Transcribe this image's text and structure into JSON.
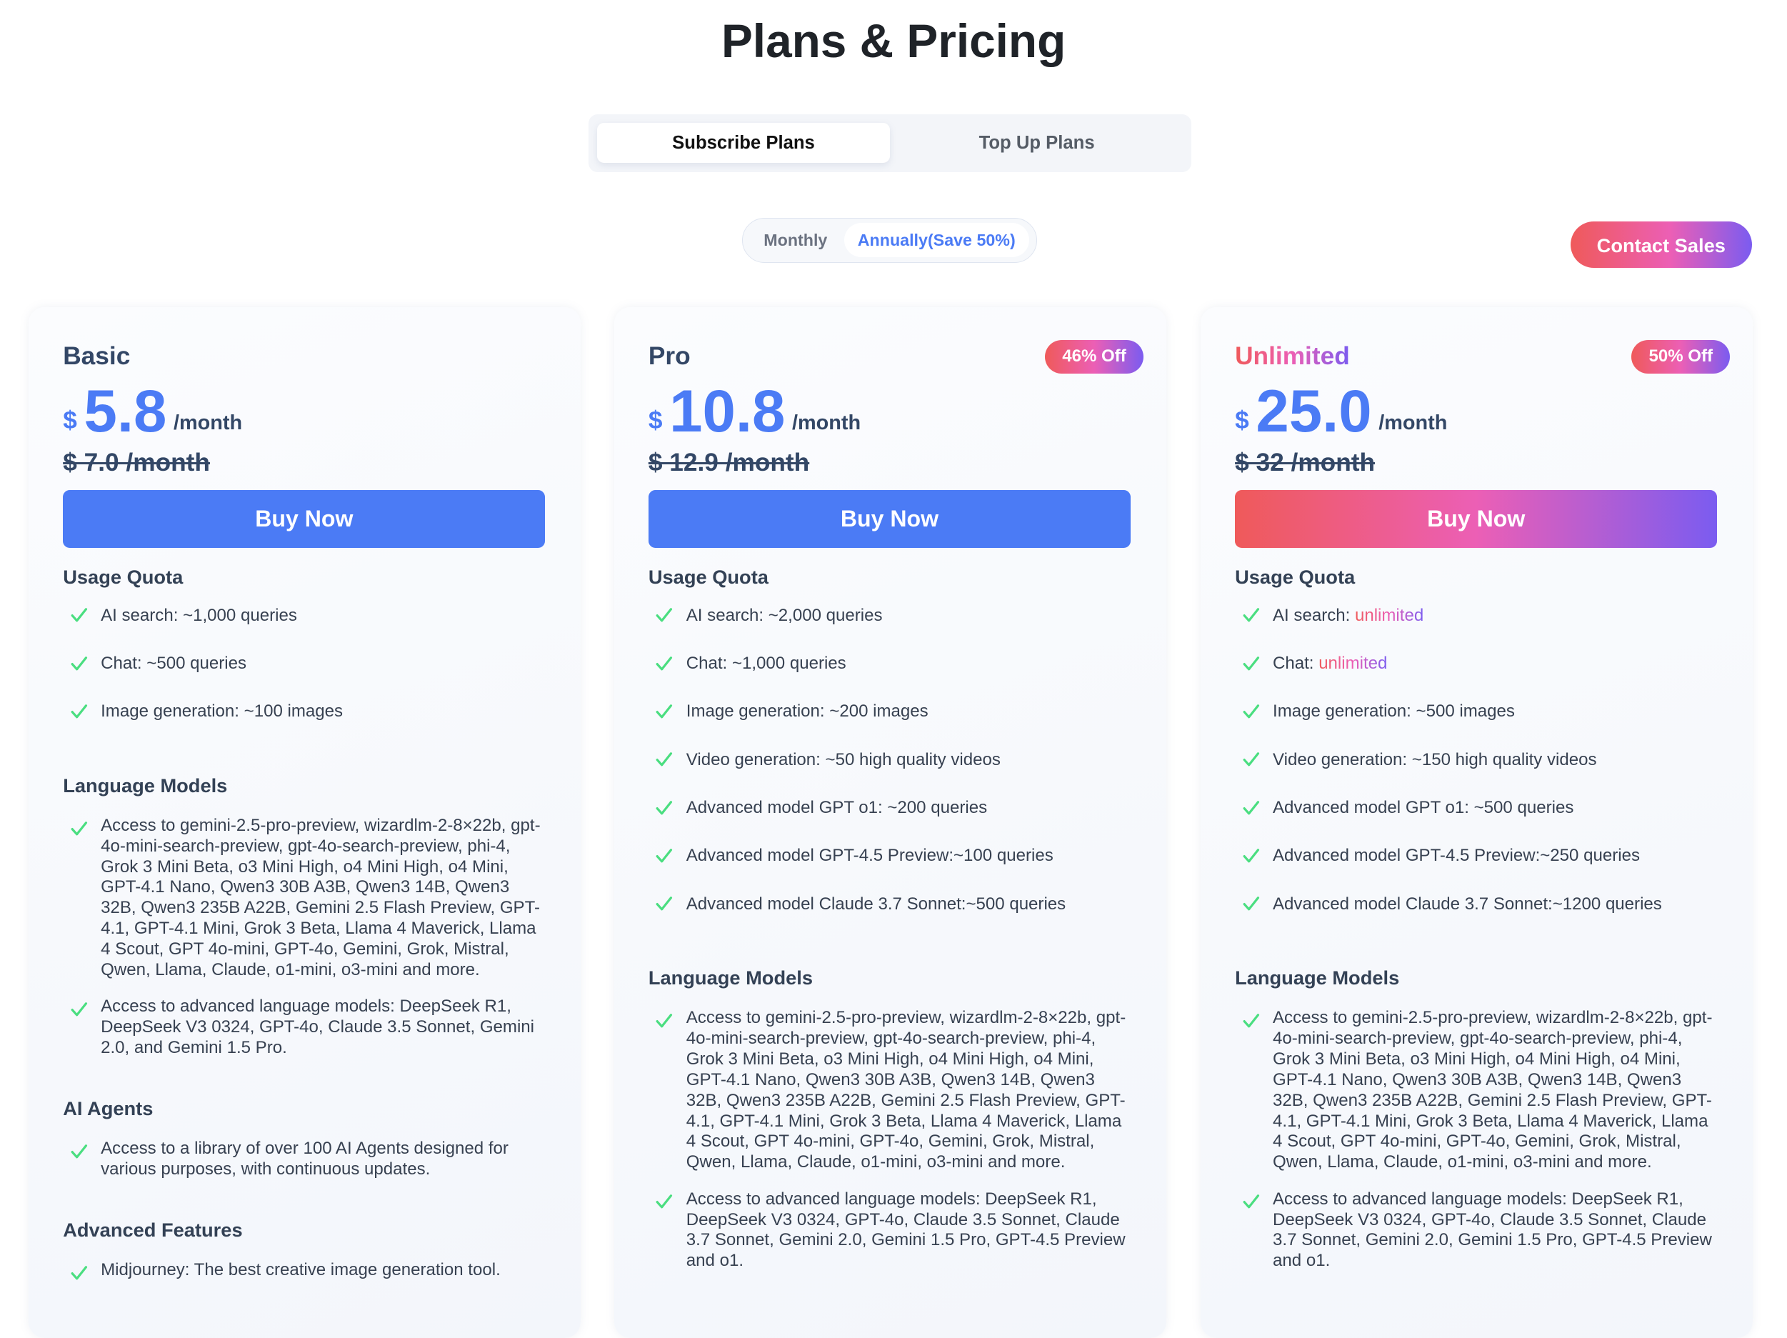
{
  "title": "Plans & Pricing",
  "tabs": [
    {
      "label": "Subscribe Plans",
      "active": true
    },
    {
      "label": "Top Up Plans",
      "active": false
    }
  ],
  "billing": {
    "monthly": "Monthly",
    "annually": "Annually(Save 50%)",
    "selected": "annually"
  },
  "contact_sales": "Contact Sales",
  "colors": {
    "accent": "#4b7bf5",
    "gradient_start": "#ef5a5a",
    "gradient_mid": "#ec5fb5",
    "gradient_end": "#7b5cf0",
    "check": "#4ade80"
  },
  "plans": [
    {
      "name": "Basic",
      "currency": "$",
      "price": "5.8",
      "per": "/month",
      "old": "$ 7.0 /month",
      "buy": "Buy Now",
      "usage_title": "Usage Quota",
      "usage": [
        {
          "label": "AI search: ",
          "value": "~1,000 queries"
        },
        {
          "label": "Chat: ",
          "value": "~500 queries"
        },
        {
          "label": "Image generation: ",
          "value": "~100 images"
        }
      ],
      "lm_title": "Language Models",
      "lm": [
        "Access to gemini-2.5-pro-preview, wizardlm-2-8×22b, gpt-4o-mini-search-preview, gpt-4o-search-preview, phi-4, Grok 3 Mini Beta, o3 Mini High, o4 Mini High, o4 Mini, GPT-4.1 Nano, Qwen3 30B A3B, Qwen3 14B, Qwen3 32B, Qwen3 235B A22B, Gemini 2.5 Flash Preview, GPT-4.1, GPT-4.1 Mini, Grok 3 Beta, Llama 4 Maverick, Llama 4 Scout, GPT 4o-mini, GPT-4o, Gemini, Grok, Mistral, Qwen, Llama, Claude, o1-mini, o3-mini and more.",
        "Access to advanced language models: DeepSeek R1, DeepSeek V3 0324, GPT-4o, Claude 3.5 Sonnet, Gemini 2.0, and Gemini 1.5 Pro."
      ],
      "agents_title": "AI Agents",
      "agents": [
        "Access to a library of over 100 AI Agents designed for various purposes, with continuous updates."
      ],
      "adv_title": "Advanced Features",
      "adv": [
        "Midjourney: The best creative image generation tool."
      ]
    },
    {
      "name": "Pro",
      "badge": "46% Off",
      "currency": "$",
      "price": "10.8",
      "per": "/month",
      "old": "$ 12.9 /month",
      "buy": "Buy Now",
      "usage_title": "Usage Quota",
      "usage": [
        {
          "label": "AI search: ",
          "value": "~2,000 queries"
        },
        {
          "label": "Chat: ",
          "value": "~1,000 queries"
        },
        {
          "label": "Image generation: ",
          "value": "~200 images"
        },
        {
          "label": "Video generation: ",
          "value": "~50 high quality videos"
        },
        {
          "label": "Advanced model GPT o1: ",
          "value": "~200 queries"
        },
        {
          "label": "Advanced model GPT-4.5 Preview:",
          "value": "~100 queries"
        },
        {
          "label": "Advanced model Claude 3.7 Sonnet:",
          "value": "~500 queries"
        }
      ],
      "lm_title": "Language Models",
      "lm": [
        "Access to gemini-2.5-pro-preview, wizardlm-2-8×22b, gpt-4o-mini-search-preview, gpt-4o-search-preview, phi-4, Grok 3 Mini Beta, o3 Mini High, o4 Mini High, o4 Mini, GPT-4.1 Nano, Qwen3 30B A3B, Qwen3 14B, Qwen3 32B, Qwen3 235B A22B, Gemini 2.5 Flash Preview, GPT-4.1, GPT-4.1 Mini, Grok 3 Beta, Llama 4 Maverick, Llama 4 Scout, GPT 4o-mini, GPT-4o, Gemini, Grok, Mistral, Qwen, Llama, Claude, o1-mini, o3-mini and more.",
        "Access to advanced language models: DeepSeek R1, DeepSeek V3 0324, GPT-4o, Claude 3.5 Sonnet, Claude 3.7 Sonnet, Gemini 2.0, Gemini 1.5 Pro, GPT-4.5 Preview and o1."
      ]
    },
    {
      "name": "Unlimited",
      "badge": "50% Off",
      "currency": "$",
      "price": "25.0",
      "per": "/month",
      "old": "$ 32 /month",
      "buy": "Buy Now",
      "usage_title": "Usage Quota",
      "usage": [
        {
          "label": "AI search: ",
          "value": "unlimited",
          "highlight": true
        },
        {
          "label": "Chat: ",
          "value": "unlimited",
          "highlight": true
        },
        {
          "label": "Image generation: ",
          "value": "~500 images"
        },
        {
          "label": "Video generation: ",
          "value": "~150 high quality videos"
        },
        {
          "label": "Advanced model GPT o1: ",
          "value": "~500 queries"
        },
        {
          "label": "Advanced model GPT-4.5 Preview:",
          "value": "~250 queries"
        },
        {
          "label": "Advanced model Claude 3.7 Sonnet:",
          "value": "~1200 queries"
        }
      ],
      "lm_title": "Language Models",
      "lm": [
        "Access to gemini-2.5-pro-preview, wizardlm-2-8×22b, gpt-4o-mini-search-preview, gpt-4o-search-preview, phi-4, Grok 3 Mini Beta, o3 Mini High, o4 Mini High, o4 Mini, GPT-4.1 Nano, Qwen3 30B A3B, Qwen3 14B, Qwen3 32B, Qwen3 235B A22B, Gemini 2.5 Flash Preview, GPT-4.1, GPT-4.1 Mini, Grok 3 Beta, Llama 4 Maverick, Llama 4 Scout, GPT 4o-mini, GPT-4o, Gemini, Grok, Mistral, Qwen, Llama, Claude, o1-mini, o3-mini and more.",
        "Access to advanced language models: DeepSeek R1, DeepSeek V3 0324, GPT-4o, Claude 3.5 Sonnet, Claude 3.7 Sonnet, Gemini 2.0, Gemini 1.5 Pro, GPT-4.5 Preview and o1."
      ]
    }
  ]
}
